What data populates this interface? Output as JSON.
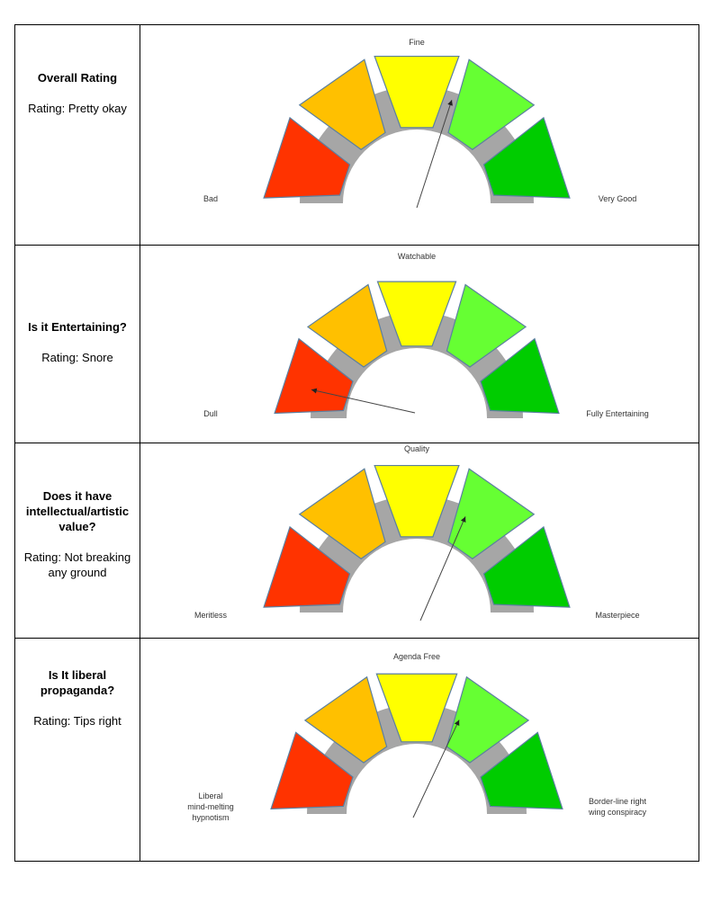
{
  "colors": {
    "segment_red": "#ff3300",
    "segment_orange": "#ffc000",
    "segment_yellow": "#ffff00",
    "segment_light_green": "#66ff33",
    "segment_green": "#00cc00",
    "gauge_track": "#a6a6a6"
  },
  "rows": [
    {
      "title": "Overall Rating",
      "rating": "Rating: Pretty okay",
      "gauge": {
        "top_label": "Fine",
        "left_label": [
          "Bad"
        ],
        "right_label": [
          "Very Good"
        ],
        "needle_level": 0.6
      }
    },
    {
      "title": "Is it Entertaining?",
      "rating": "Rating: Snore",
      "gauge": {
        "top_label": "Watchable",
        "left_label": [
          "Dull"
        ],
        "right_label": [
          "Fully Entertaining"
        ],
        "needle_level": 0.07
      }
    },
    {
      "title": "Does it have intellectual/artistic value?",
      "rating": "Rating: Not breaking any ground",
      "gauge": {
        "top_label": "Quality",
        "left_label": [
          "Meritless"
        ],
        "right_label": [
          "Masterpiece"
        ],
        "needle_level": 0.63
      }
    },
    {
      "title": "Is It liberal propaganda?",
      "rating": "Rating: Tips right",
      "gauge": {
        "top_label": "Agenda Free",
        "left_label": [
          "Liberal",
          "mind-melting",
          "hypnotism"
        ],
        "right_label": [
          "Border-line right",
          "wing conspiracy"
        ],
        "needle_level": 0.64
      }
    }
  ]
}
